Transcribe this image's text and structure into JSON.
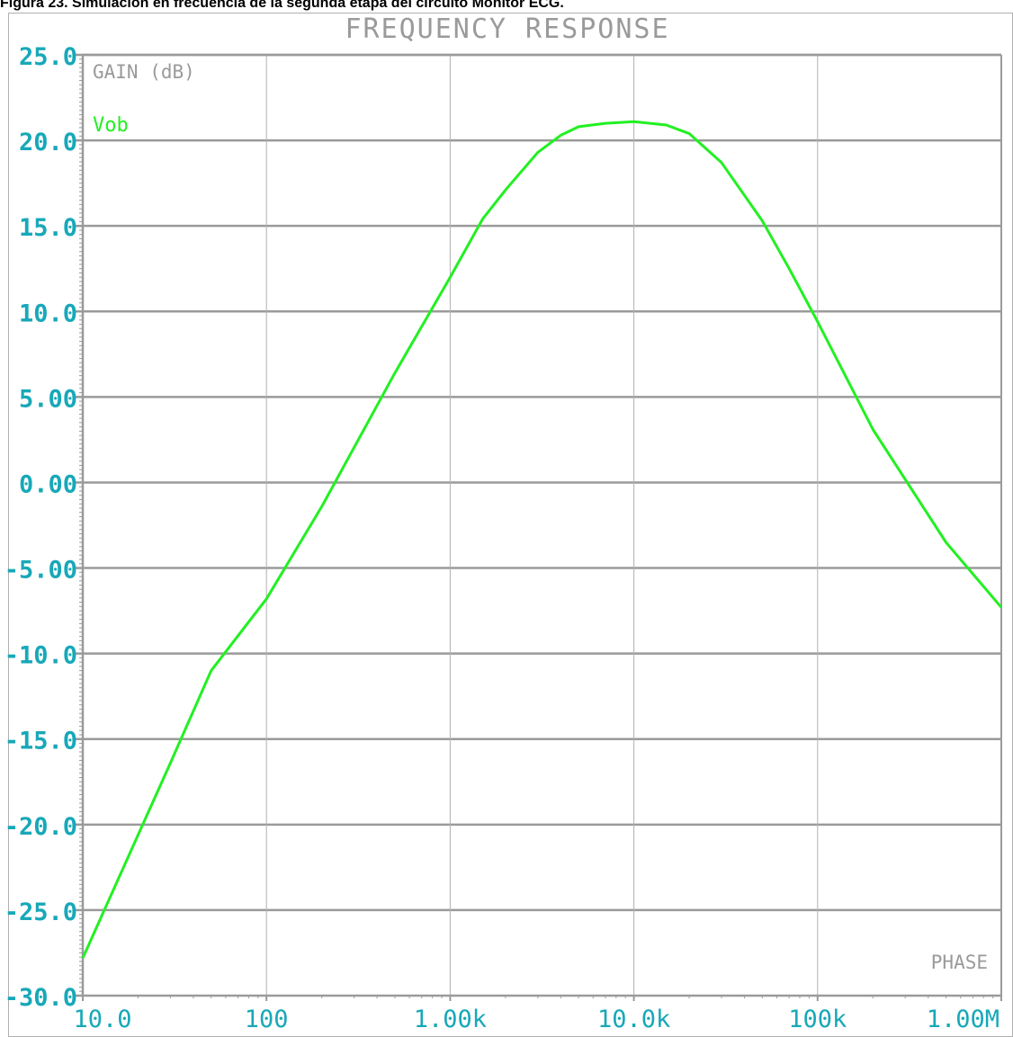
{
  "caption": "Figura 23. Simulación en frecuencia de la segunda etapa del circuito Monitor ECG.",
  "colors": {
    "background": "#ffffff",
    "grid": "#b0b0b0",
    "major_grid": "#9a9a9a",
    "tick_label": "#18a8b8",
    "title": "#9a9a9a",
    "trace": "#22f022"
  },
  "chart_data": {
    "type": "line",
    "title": "FREQUENCY RESPONSE",
    "ylabel": "GAIN (dB)",
    "secondary_label": "PHASE",
    "xscale": "log",
    "xlim": [
      10,
      1000000
    ],
    "ylim": [
      -30,
      25
    ],
    "grid": true,
    "x_tick_values": [
      10,
      100,
      1000,
      10000,
      100000,
      1000000
    ],
    "x_tick_labels": [
      "10.0",
      "100",
      "1.00k",
      "10.0k",
      "100k",
      "1.00M"
    ],
    "y_tick_values": [
      25,
      20,
      15,
      10,
      5,
      0,
      -5,
      -10,
      -15,
      -20,
      -25,
      -30
    ],
    "y_tick_labels": [
      "25.0",
      "20.0",
      "15.0",
      "10.0",
      "5.00",
      "0.00",
      "-5.00",
      "-10.0",
      "-15.0",
      "-20.0",
      "-25.0",
      "-30.0"
    ],
    "series": [
      {
        "name": "Vob",
        "x": [
          10,
          20,
          30,
          50,
          100,
          200,
          500,
          1000,
          1500,
          2000,
          3000,
          4000,
          5000,
          7000,
          10000,
          15000,
          20000,
          30000,
          50000,
          70000,
          100000,
          200000,
          500000,
          1000000
        ],
        "y": [
          -27.8,
          -20.6,
          -16.4,
          -11.0,
          -6.8,
          -1.4,
          6.4,
          12.0,
          15.4,
          17.1,
          19.3,
          20.3,
          20.8,
          21.0,
          21.1,
          20.9,
          20.4,
          18.7,
          15.3,
          12.5,
          9.4,
          3.1,
          -3.5,
          -7.3
        ]
      }
    ]
  }
}
